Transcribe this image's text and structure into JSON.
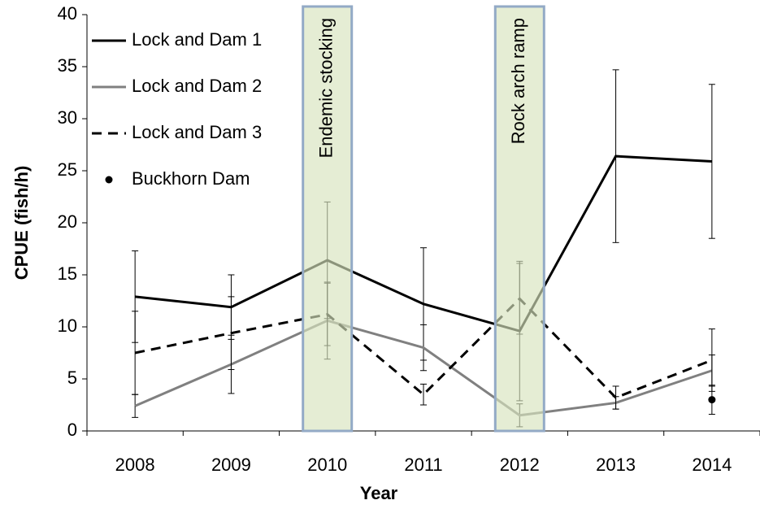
{
  "chart_data": {
    "type": "line",
    "x_label": "Year",
    "y_label": "CPUE (fish/h)",
    "categories": [
      "2008",
      "2009",
      "2010",
      "2011",
      "2012",
      "2013",
      "2014"
    ],
    "ylim": [
      0,
      40
    ],
    "yticks": [
      0,
      5,
      10,
      15,
      20,
      25,
      30,
      35,
      40
    ],
    "legend": "top-left",
    "series": [
      {
        "name": "Lock and Dam 1",
        "color": "#000000",
        "line_style": "solid",
        "values": [
          12.9,
          11.9,
          16.4,
          12.2,
          9.6,
          26.4,
          25.9
        ],
        "errors": [
          4.4,
          3.1,
          5.6,
          5.4,
          6.7,
          8.3,
          7.4
        ]
      },
      {
        "name": "Lock and Dam 2",
        "color": "#808080",
        "line_style": "solid",
        "values": [
          2.4,
          6.4,
          10.6,
          8.0,
          1.5,
          2.7,
          5.8
        ],
        "errors": [
          1.1,
          2.8,
          3.7,
          2.2,
          1.1,
          0.6,
          1.5
        ]
      },
      {
        "name": "Lock and Dam 3",
        "color": "#000000",
        "line_style": "dashed",
        "values": [
          7.5,
          9.4,
          11.2,
          3.5,
          12.7,
          3.2,
          6.8
        ],
        "errors": [
          4.0,
          3.5,
          3.0,
          1.0,
          3.4,
          1.1,
          3.0
        ]
      },
      {
        "name": "Buckhorn Dam",
        "color": "#000000",
        "line_style": "none",
        "marker": "circle",
        "values": [
          null,
          null,
          null,
          null,
          null,
          null,
          3.0
        ],
        "errors": [
          null,
          null,
          null,
          null,
          null,
          null,
          1.4
        ]
      }
    ],
    "annotations": [
      {
        "text": "Endemic stocking",
        "x": "2010"
      },
      {
        "text": "Rock arch ramp",
        "x": "2012"
      }
    ]
  }
}
